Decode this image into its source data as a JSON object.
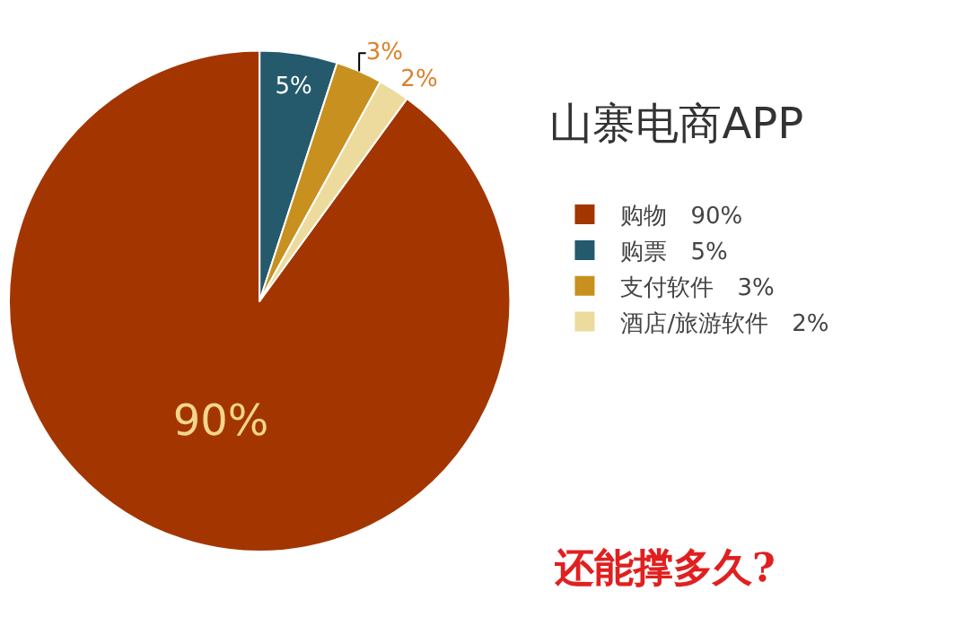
{
  "chart_data": {
    "type": "pie",
    "title": "山寨电商APP",
    "categories": [
      "购物",
      "购票",
      "支付软件",
      "酒店/旅游软件"
    ],
    "values": [
      90,
      5,
      3,
      2
    ],
    "colors": [
      "#a33600",
      "#245a6c",
      "#c8901f",
      "#ecdb9c"
    ],
    "value_labels": [
      "90%",
      "5%",
      "3%",
      "2%"
    ],
    "legend": "right",
    "annotations": [
      "还能撑多久?"
    ]
  }
}
